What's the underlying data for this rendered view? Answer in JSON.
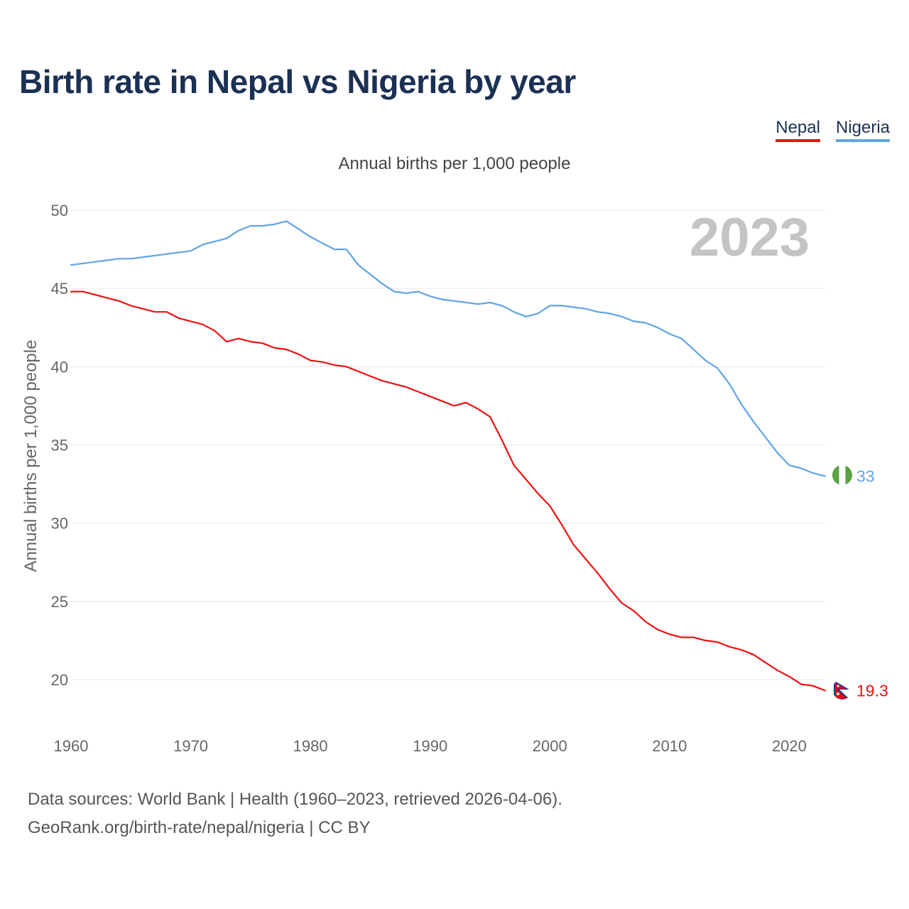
{
  "title": "Birth rate in Nepal vs Nigeria by year",
  "subtitle": "Annual births per 1,000 people",
  "legend": {
    "nepal_label": "Nepal",
    "nigeria_label": "Nigeria"
  },
  "year_label": "2023",
  "source_line1": "Data sources: World Bank | Health (1960–2023, retrieved 2026-04-06).",
  "source_line2": "GeoRank.org/birth-rate/nepal/nigeria | CC BY",
  "colors": {
    "nepal": "#ee1111",
    "nigeria": "#5fa4e6",
    "grid": "#e6e6e6",
    "axis_text": "#666666",
    "year_text": "#c4c4c4"
  },
  "chart_data": {
    "type": "line",
    "title": "Birth rate in Nepal vs Nigeria by year",
    "xlabel": "",
    "ylabel": "Annual births per 1,000 people",
    "xlim": [
      1960,
      2023
    ],
    "ylim": [
      17,
      51
    ],
    "x_ticks": [
      1960,
      1970,
      1980,
      1990,
      2000,
      2010,
      2020
    ],
    "y_ticks": [
      20,
      25,
      30,
      35,
      40,
      45,
      50
    ],
    "grid": true,
    "legend_position": "top-right",
    "x": [
      1960,
      1961,
      1962,
      1963,
      1964,
      1965,
      1966,
      1967,
      1968,
      1969,
      1970,
      1971,
      1972,
      1973,
      1974,
      1975,
      1976,
      1977,
      1978,
      1979,
      1980,
      1981,
      1982,
      1983,
      1984,
      1985,
      1986,
      1987,
      1988,
      1989,
      1990,
      1991,
      1992,
      1993,
      1994,
      1995,
      1996,
      1997,
      1998,
      1999,
      2000,
      2001,
      2002,
      2003,
      2004,
      2005,
      2006,
      2007,
      2008,
      2009,
      2010,
      2011,
      2012,
      2013,
      2014,
      2015,
      2016,
      2017,
      2018,
      2019,
      2020,
      2021,
      2022,
      2023
    ],
    "series": [
      {
        "name": "Nepal",
        "color": "#ee1111",
        "end_label": "19.3",
        "values": [
          44.8,
          44.8,
          44.6,
          44.4,
          44.2,
          43.9,
          43.7,
          43.5,
          43.5,
          43.1,
          42.9,
          42.7,
          42.3,
          41.6,
          41.8,
          41.6,
          41.5,
          41.2,
          41.1,
          40.8,
          40.4,
          40.3,
          40.1,
          40.0,
          39.7,
          39.4,
          39.1,
          38.9,
          38.7,
          38.4,
          38.1,
          37.8,
          37.5,
          37.7,
          37.3,
          36.8,
          35.3,
          33.7,
          32.8,
          31.9,
          31.1,
          29.9,
          28.6,
          27.7,
          26.8,
          25.8,
          24.9,
          24.4,
          23.7,
          23.2,
          22.9,
          22.7,
          22.7,
          22.5,
          22.4,
          22.1,
          21.9,
          21.6,
          21.1,
          20.6,
          20.2,
          19.7,
          19.6,
          19.3
        ]
      },
      {
        "name": "Nigeria",
        "color": "#5fa4e6",
        "end_label": "33",
        "values": [
          46.5,
          46.6,
          46.7,
          46.8,
          46.9,
          46.9,
          47.0,
          47.1,
          47.2,
          47.3,
          47.4,
          47.8,
          48.0,
          48.2,
          48.7,
          49.0,
          49.0,
          49.1,
          49.3,
          48.8,
          48.3,
          47.9,
          47.5,
          47.5,
          46.5,
          45.9,
          45.3,
          44.8,
          44.7,
          44.8,
          44.5,
          44.3,
          44.2,
          44.1,
          44.0,
          44.1,
          43.9,
          43.5,
          43.2,
          43.4,
          43.9,
          43.9,
          43.8,
          43.7,
          43.5,
          43.4,
          43.2,
          42.9,
          42.8,
          42.5,
          42.1,
          41.8,
          41.1,
          40.4,
          39.9,
          38.9,
          37.6,
          36.5,
          35.5,
          34.5,
          33.7,
          33.5,
          33.2,
          33.0
        ]
      }
    ]
  }
}
